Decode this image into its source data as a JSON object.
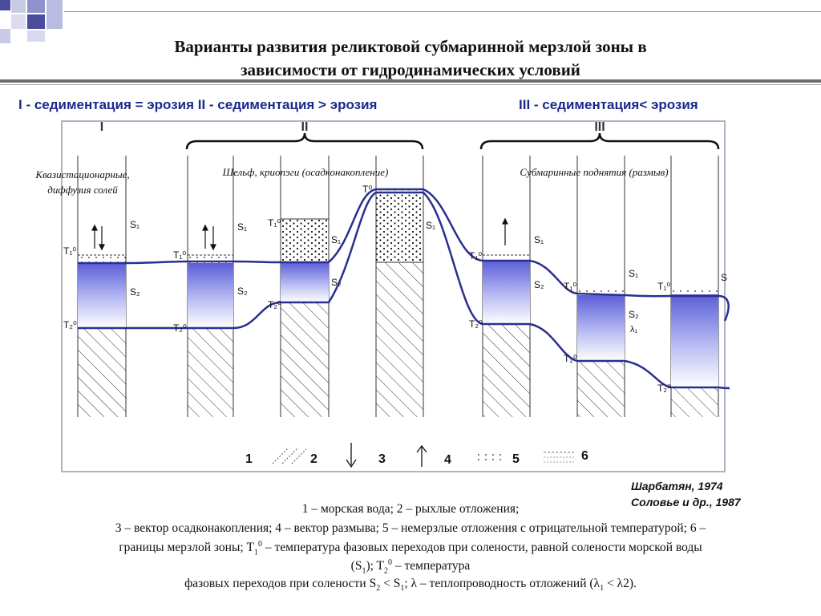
{
  "title_line1": "Варианты развития реликтовой субмаринной мерзлой зоны в",
  "title_line2": "зависимости от гидродинамических условий",
  "subtitles": {
    "left": "I - седиментация = эрозия  II - седиментация > эрозия",
    "right": "III - седиментация< эрозия"
  },
  "roman": {
    "i": "I",
    "ii": "II",
    "iii": "III"
  },
  "captions": {
    "left_l1": "Квазистационарные,",
    "left_l2": "диффузия солей",
    "middle": "Шельф, криопэги (осадконакопление)",
    "right": "Субмаринные поднятия (размыв)"
  },
  "labels": {
    "s1": "S₁",
    "s2": "S₂",
    "t1": "T₁⁰",
    "t2": "T₂⁰",
    "t0": "T⁰",
    "lambda1": "λ₁",
    "s_cut": "S"
  },
  "legend": {
    "n1": "1",
    "n2": "2",
    "n3": "3",
    "n4": "4",
    "n5": "5",
    "n6": "6"
  },
  "authors": {
    "line1": "Шарбатян, 1974",
    "line2": "Соловье и др., 1987"
  },
  "caption": {
    "line1": "1 – морская вода; 2 – рыхлые отложения;",
    "line2": "3 – вектор осадконакопления; 4 – вектор размыва; 5 – немерзлые отложения с отрицательной температурой; 6 –",
    "line3a": "границы мерзлой зоны; T",
    "line3b": " – температура фазовых переходов при солености, равной солености морской воды",
    "line4a": "(S",
    "line4b": "); T",
    "line4c": " – температура",
    "line5a": "фазовых переходов при солености S",
    "line5b": " < S",
    "line5c": "; λ – теплопроводность отложений (λ",
    "line5d": " < λ2).",
    "sub1": "1",
    "sub2": "2",
    "sup0": "0"
  },
  "colors": {
    "accent_blue": "#1a2a8c",
    "curve": "#2a2f8f",
    "frozen_top": "#5a5fd8"
  }
}
